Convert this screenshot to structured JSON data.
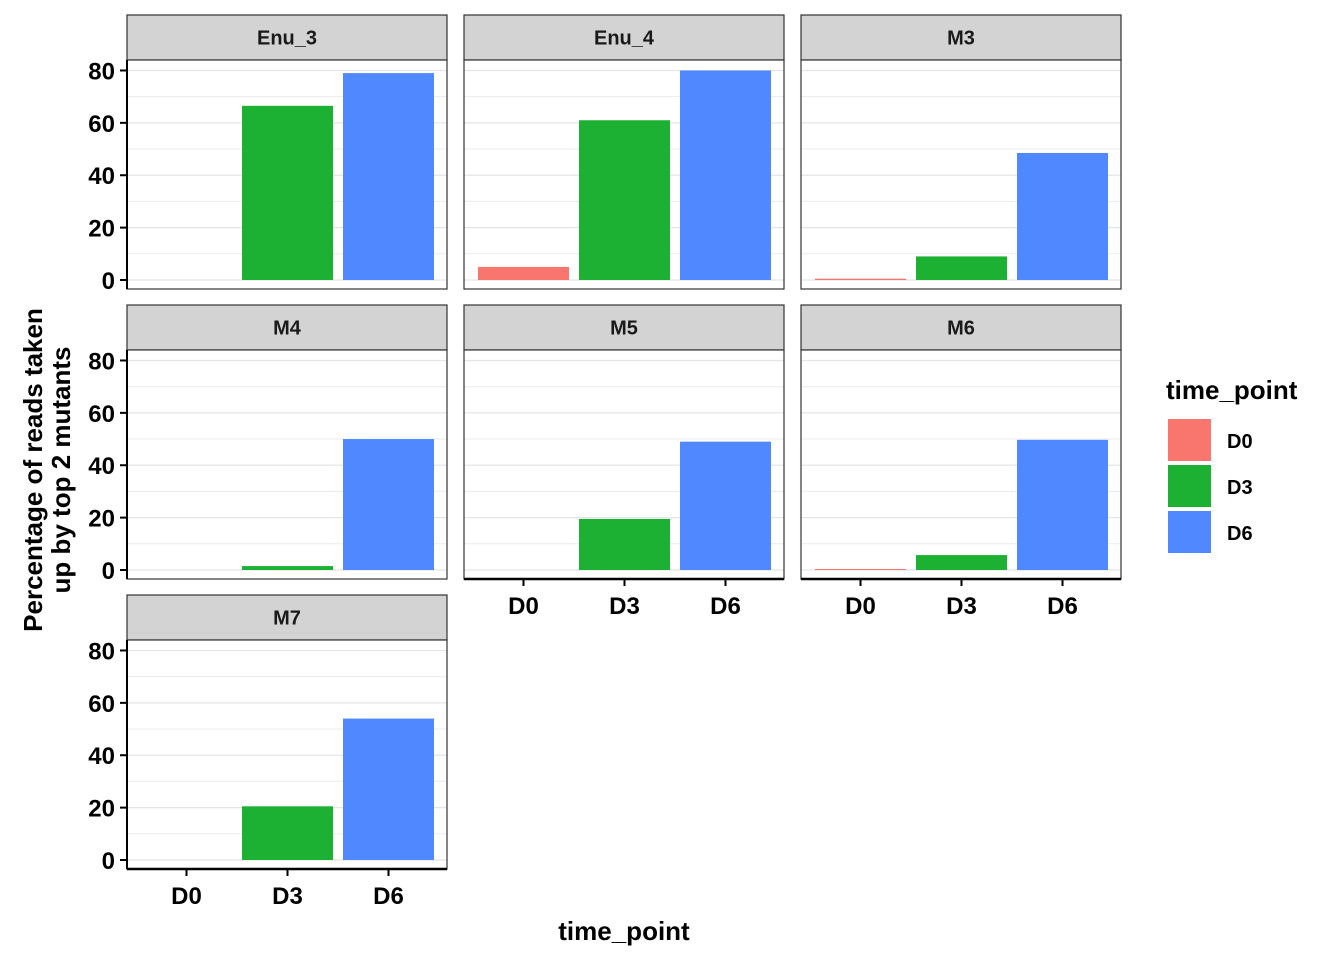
{
  "chart_data": {
    "type": "bar",
    "facet_by": "panel",
    "categories": [
      "D0",
      "D3",
      "D6"
    ],
    "xlabel": "time_point",
    "ylabel_lines": [
      "Percentage of reads taken",
      "up by top 2 mutants"
    ],
    "ylim": [
      0,
      84
    ],
    "yticks": [
      0,
      20,
      40,
      60,
      80
    ],
    "grid": true,
    "legend": {
      "title": "time_point",
      "position": "right",
      "entries": [
        {
          "label": "D0",
          "color": "#F8766D"
        },
        {
          "label": "D3",
          "color": "#1CB132"
        },
        {
          "label": "D6",
          "color": "#4F88FF"
        }
      ]
    },
    "panels": [
      {
        "name": "Enu_3",
        "values": [
          null,
          66.5,
          79
        ]
      },
      {
        "name": "Enu_4",
        "values": [
          5,
          61,
          80
        ]
      },
      {
        "name": "M3",
        "values": [
          0.5,
          9,
          48.5
        ]
      },
      {
        "name": "M4",
        "values": [
          null,
          1.5,
          50
        ]
      },
      {
        "name": "M5",
        "values": [
          null,
          19.5,
          49
        ]
      },
      {
        "name": "M6",
        "values": [
          0.2,
          5.7,
          49.7
        ]
      },
      {
        "name": "M7",
        "values": [
          null,
          20.5,
          54
        ]
      }
    ]
  }
}
